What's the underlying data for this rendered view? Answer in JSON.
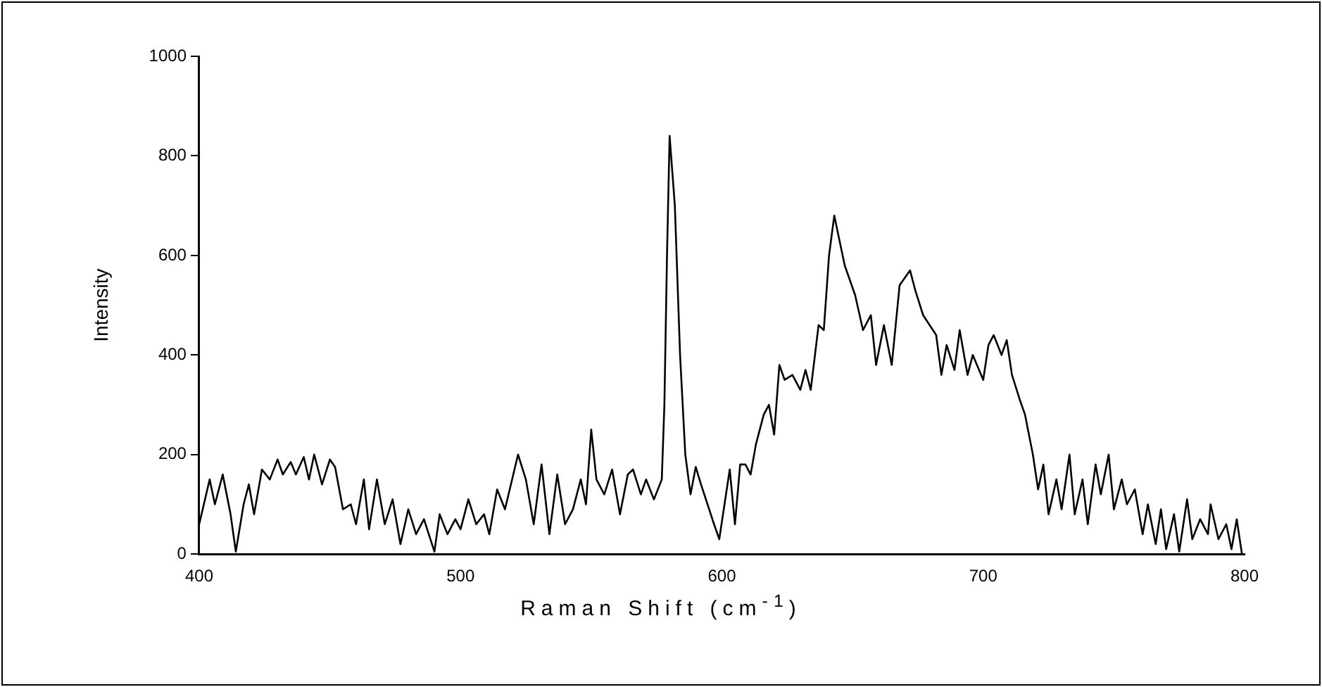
{
  "chart_data": {
    "type": "line",
    "xlabel": "Raman Shift (cm$^{-1}$)",
    "ylabel": "Intensity",
    "color": "#000000",
    "x": [
      400,
      404,
      406,
      409,
      412,
      414,
      417,
      419,
      421,
      424,
      427,
      430,
      432,
      435,
      437,
      440,
      442,
      444,
      447,
      450,
      452,
      455,
      458,
      460,
      463,
      465,
      468,
      471,
      474,
      477,
      480,
      483,
      486,
      490,
      492,
      495,
      498,
      500,
      503,
      506,
      509,
      511,
      514,
      517,
      522,
      525,
      528,
      531,
      534,
      537,
      540,
      543,
      546,
      548,
      550,
      552,
      555,
      558,
      561,
      564,
      566,
      569,
      571,
      574,
      577,
      578,
      579,
      580,
      582,
      584,
      586,
      588,
      590,
      592,
      597,
      599,
      601,
      603,
      605,
      607,
      609,
      611,
      613,
      616,
      618,
      620,
      622,
      624,
      627,
      630,
      632,
      634,
      637,
      639,
      641,
      643,
      645,
      647,
      651,
      654,
      657,
      659,
      662,
      665,
      668,
      672,
      674,
      677,
      682,
      684,
      686,
      689,
      691,
      694,
      696,
      700,
      702,
      704,
      707,
      709,
      711,
      714,
      716,
      719,
      721,
      723,
      725,
      728,
      730,
      733,
      735,
      738,
      740,
      743,
      745,
      748,
      750,
      753,
      755,
      758,
      761,
      763,
      766,
      768,
      770,
      773,
      775,
      778,
      780,
      783,
      786,
      787,
      790,
      793,
      795,
      797,
      799
    ],
    "values": [
      60,
      150,
      100,
      160,
      80,
      5,
      100,
      140,
      80,
      170,
      150,
      190,
      160,
      185,
      160,
      195,
      150,
      200,
      140,
      190,
      175,
      90,
      100,
      60,
      150,
      50,
      150,
      60,
      110,
      20,
      90,
      40,
      70,
      5,
      80,
      40,
      70,
      50,
      110,
      60,
      80,
      40,
      130,
      90,
      200,
      150,
      60,
      180,
      40,
      160,
      60,
      90,
      150,
      100,
      250,
      150,
      120,
      170,
      80,
      160,
      170,
      120,
      150,
      110,
      150,
      300,
      600,
      840,
      700,
      400,
      200,
      120,
      175,
      140,
      60,
      30,
      100,
      170,
      60,
      180,
      180,
      160,
      220,
      280,
      300,
      240,
      380,
      350,
      360,
      330,
      370,
      330,
      460,
      450,
      600,
      680,
      630,
      580,
      520,
      450,
      480,
      380,
      460,
      380,
      540,
      570,
      530,
      480,
      440,
      360,
      420,
      370,
      450,
      360,
      400,
      350,
      420,
      440,
      400,
      430,
      360,
      310,
      280,
      200,
      130,
      180,
      80,
      150,
      90,
      200,
      80,
      150,
      60,
      180,
      120,
      200,
      90,
      150,
      100,
      130,
      40,
      100,
      20,
      90,
      10,
      80,
      5,
      110,
      30,
      70,
      40,
      100,
      30,
      60,
      10,
      70,
      0
    ],
    "xlim": [
      400,
      800
    ],
    "xticks": [
      400,
      500,
      600,
      700,
      800
    ],
    "ylim": [
      0,
      1000
    ],
    "yticks": [
      0,
      200,
      400,
      600,
      800,
      1000
    ],
    "grid": false,
    "legend": false,
    "marker": "none",
    "line_style": "solid"
  }
}
